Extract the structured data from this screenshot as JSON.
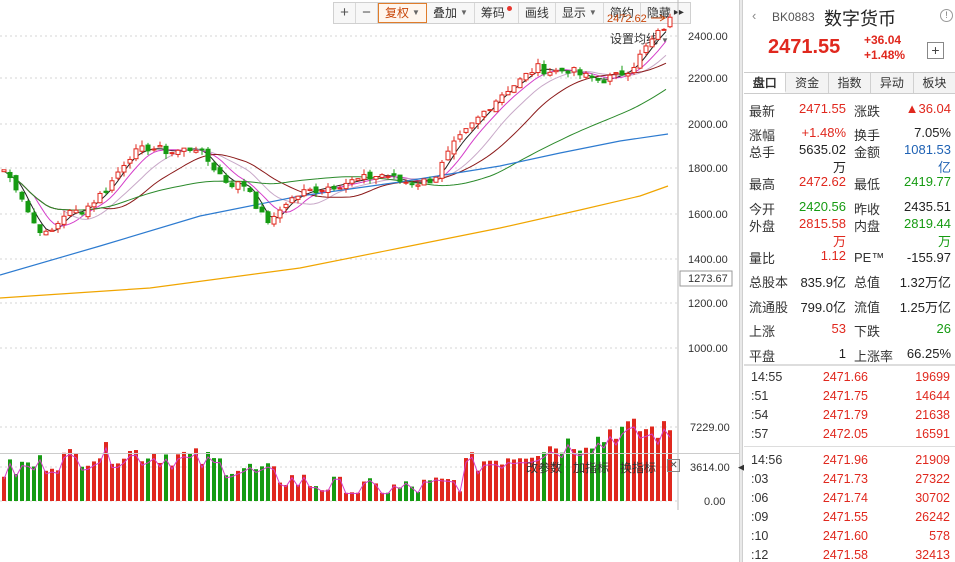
{
  "toolbar": {
    "plus": "+",
    "minus": "−",
    "buttons": [
      "复权",
      "叠加",
      "筹码",
      "画线",
      "显示",
      "简约",
      "隐藏"
    ],
    "hide_arrows": "▸▸"
  },
  "ma_setting": "设置均线",
  "price_marker": "2472.62",
  "current_price_label": "1273.67",
  "y_axis_main": [
    "2400.00",
    "2200.00",
    "2000.00",
    "1800.00",
    "1600.00",
    "1400.00",
    "1200.00",
    "1000.00"
  ],
  "y_axis_vol": [
    "7229.00",
    "3614.00",
    "0.00"
  ],
  "volume_toolbar": {
    "modify_params": "改参数",
    "add_indicator": "加指标",
    "change_indicator": "换指标",
    "close": "✕"
  },
  "panel": {
    "code": "BK0883",
    "name": "数字货币",
    "price": "2471.55",
    "change": "+36.04",
    "change_pct": "+1.48%",
    "add": "+",
    "tabs": [
      "盘口",
      "资金",
      "指数",
      "异动",
      "板块"
    ],
    "quote": [
      [
        {
          "label": "最新",
          "value": "2471.55",
          "color": "red"
        },
        {
          "label": "涨跌",
          "value": "▲36.04",
          "color": "red"
        }
      ],
      [
        {
          "label": "涨幅",
          "value": "+1.48%",
          "color": "red"
        },
        {
          "label": "换手",
          "value": "7.05%",
          "color": "dark"
        }
      ],
      [
        {
          "label": "总手",
          "value": "5635.02万",
          "color": "dark"
        },
        {
          "label": "金额",
          "value": "1081.53亿",
          "color": "blue"
        }
      ],
      [
        {
          "label": "最高",
          "value": "2472.62",
          "color": "red"
        },
        {
          "label": "最低",
          "value": "2419.77",
          "color": "green"
        }
      ],
      [
        {
          "label": "今开",
          "value": "2420.56",
          "color": "green"
        },
        {
          "label": "昨收",
          "value": "2435.51",
          "color": "dark"
        }
      ],
      [
        {
          "label": "外盘",
          "value": "2815.58万",
          "color": "red"
        },
        {
          "label": "内盘",
          "value": "2819.44万",
          "color": "green"
        }
      ],
      [
        {
          "label": "量比",
          "value": "1.12",
          "color": "red"
        },
        {
          "label": "PE™",
          "value": "-155.97",
          "color": "dark"
        }
      ],
      [
        {
          "label": "总股本",
          "value": "835.9亿",
          "color": "dark"
        },
        {
          "label": "总值",
          "value": "1.32万亿",
          "color": "dark"
        }
      ],
      [
        {
          "label": "流通股",
          "value": "799.0亿",
          "color": "dark"
        },
        {
          "label": "流值",
          "value": "1.25万亿",
          "color": "dark"
        }
      ],
      [
        {
          "label": "上涨",
          "value": "53",
          "color": "red"
        },
        {
          "label": "下跌",
          "value": "26",
          "color": "green"
        }
      ],
      [
        {
          "label": "平盘",
          "value": "1",
          "color": "dark"
        },
        {
          "label": "上涨率",
          "value": "66.25%",
          "color": "dark"
        }
      ]
    ],
    "trades_a": [
      {
        "time": "14:55",
        "price": "2471.66",
        "vol": "19699"
      },
      {
        "time": ":51",
        "price": "2471.75",
        "vol": "14644"
      },
      {
        "time": ":54",
        "price": "2471.79",
        "vol": "21638"
      },
      {
        "time": ":57",
        "price": "2472.05",
        "vol": "16591"
      }
    ],
    "trades_b": [
      {
        "time": "14:56",
        "price": "2471.96",
        "vol": "21909"
      },
      {
        "time": ":03",
        "price": "2471.73",
        "vol": "27322"
      },
      {
        "time": ":06",
        "price": "2471.74",
        "vol": "30702"
      },
      {
        "time": ":09",
        "price": "2471.55",
        "vol": "26242"
      },
      {
        "time": ":10",
        "price": "2471.60",
        "vol": "578"
      },
      {
        "time": ":12",
        "price": "2471.58",
        "vol": "32413"
      }
    ]
  },
  "colors": {
    "up": "#e0281e",
    "down": "#169b12",
    "ma5": "#222222",
    "ma10": "#d43dc9",
    "ma20": "#c8a8c8",
    "ma30": "#8b1a1a",
    "ma60": "#2b8a2b",
    "ma120": "#2d7bd0",
    "ma250": "#f0a500"
  }
}
